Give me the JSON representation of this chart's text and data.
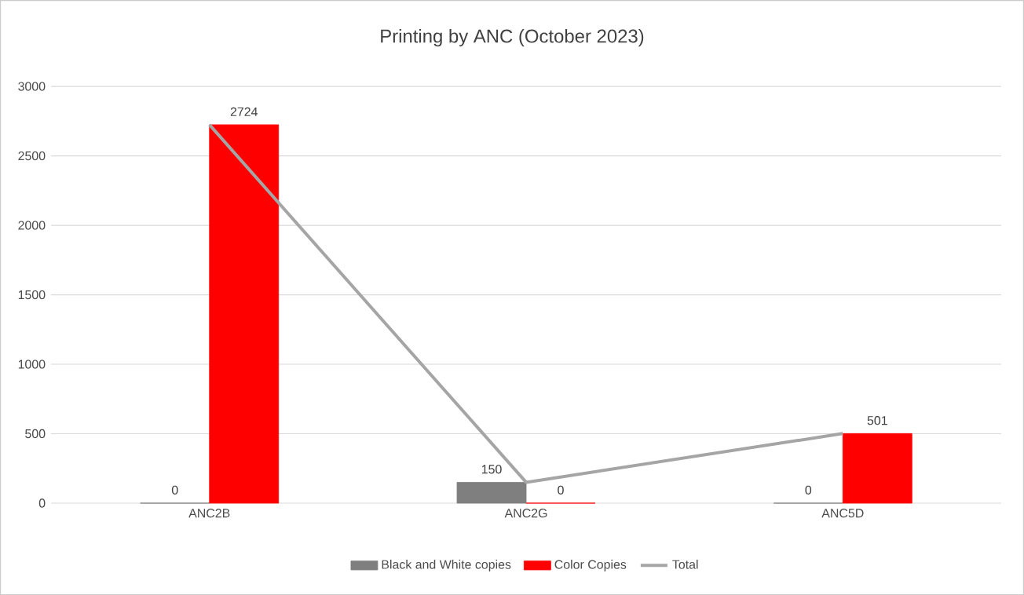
{
  "chart_data": {
    "type": "bar",
    "title": "Printing by ANC (October 2023)",
    "categories": [
      "ANC2B",
      "ANC2G",
      "ANC5D"
    ],
    "series": [
      {
        "name": "Black and White copies",
        "color": "#7f7f7f",
        "values": [
          0,
          150,
          0
        ],
        "value_labels": [
          "0",
          "150",
          "0"
        ]
      },
      {
        "name": "Color Copies",
        "color": "#ff0000",
        "values": [
          2724,
          0,
          501
        ],
        "value_labels": [
          "2724",
          "0",
          "501"
        ]
      },
      {
        "name": "Total",
        "type": "line",
        "color": "#a5a5a5",
        "values": [
          2724,
          150,
          501
        ]
      }
    ],
    "ylim": [
      0,
      3000
    ],
    "yticks": [
      0,
      500,
      1000,
      1500,
      2000,
      2500,
      3000
    ],
    "grid": "y",
    "legend": "bottom"
  }
}
